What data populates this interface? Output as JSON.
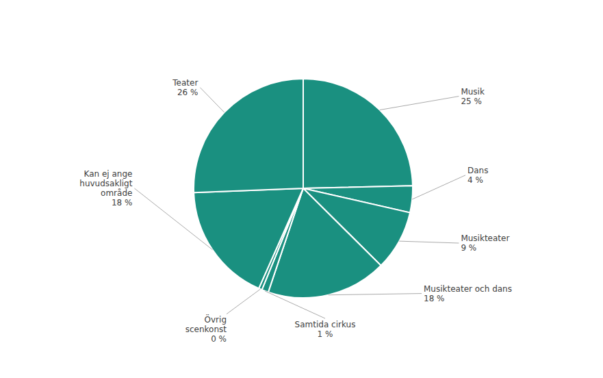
{
  "chart_data": {
    "type": "pie",
    "categories": [
      "Musik",
      "Dans",
      "Musikteater",
      "Musikteater och dans",
      "Samtida cirkus",
      "Övrig\nscenkonst",
      "Kan ej ange\nhuvudsakligt\nområde",
      "Teater"
    ],
    "values": [
      25,
      4,
      9,
      18,
      1,
      0.5,
      18,
      26
    ],
    "value_labels": [
      "25 %",
      "4 %",
      "9 %",
      "18 %",
      "1 %",
      "0 %",
      "18 %",
      "26 %"
    ],
    "color": "#1a9080",
    "data_labels": true
  }
}
